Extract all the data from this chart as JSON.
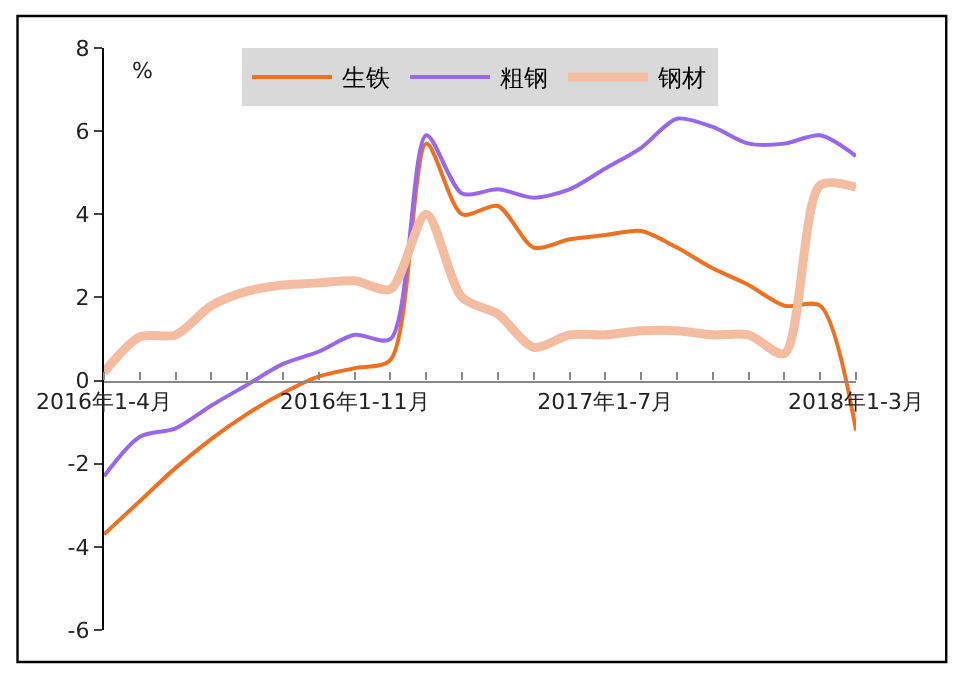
{
  "chart_data": {
    "type": "line",
    "ylabel": "%",
    "categories": [
      "2016年1-4月",
      null,
      null,
      null,
      null,
      null,
      null,
      "2016年1-11月",
      null,
      null,
      null,
      null,
      null,
      null,
      "2017年1-7月",
      null,
      null,
      null,
      null,
      null,
      null,
      "2018年1-3月"
    ],
    "series": [
      {
        "name": "生铁",
        "color": "#f07020",
        "values": [
          -3.7,
          -2.9,
          -2.1,
          -1.4,
          -0.8,
          -0.3,
          0.1,
          0.3,
          0.5,
          5.7,
          4.0,
          4.2,
          3.2,
          3.4,
          3.5,
          3.6,
          3.2,
          2.7,
          2.3,
          1.8,
          1.8,
          -1.2
        ]
      },
      {
        "name": "粗钢",
        "color": "#9966ee",
        "values": [
          -2.3,
          -1.35,
          -1.15,
          -0.6,
          -0.1,
          0.4,
          0.7,
          1.1,
          1.0,
          5.9,
          4.5,
          4.6,
          4.4,
          4.6,
          5.1,
          5.6,
          6.3,
          6.1,
          5.7,
          5.7,
          5.9,
          5.4
        ]
      },
      {
        "name": "钢材",
        "color": "#f4bca0",
        "values": [
          0.2,
          1.05,
          1.1,
          1.8,
          2.15,
          2.3,
          2.35,
          2.4,
          2.2,
          4.0,
          2.0,
          1.6,
          0.8,
          1.1,
          1.1,
          1.2,
          1.2,
          1.1,
          1.1,
          0.65,
          4.7,
          4.65
        ]
      }
    ],
    "ylim": [
      -6,
      8
    ],
    "yticks": [
      -6,
      -4,
      -2,
      0,
      2,
      4,
      6,
      8
    ],
    "legend": "top",
    "marker": "none",
    "line_style": "solid"
  }
}
